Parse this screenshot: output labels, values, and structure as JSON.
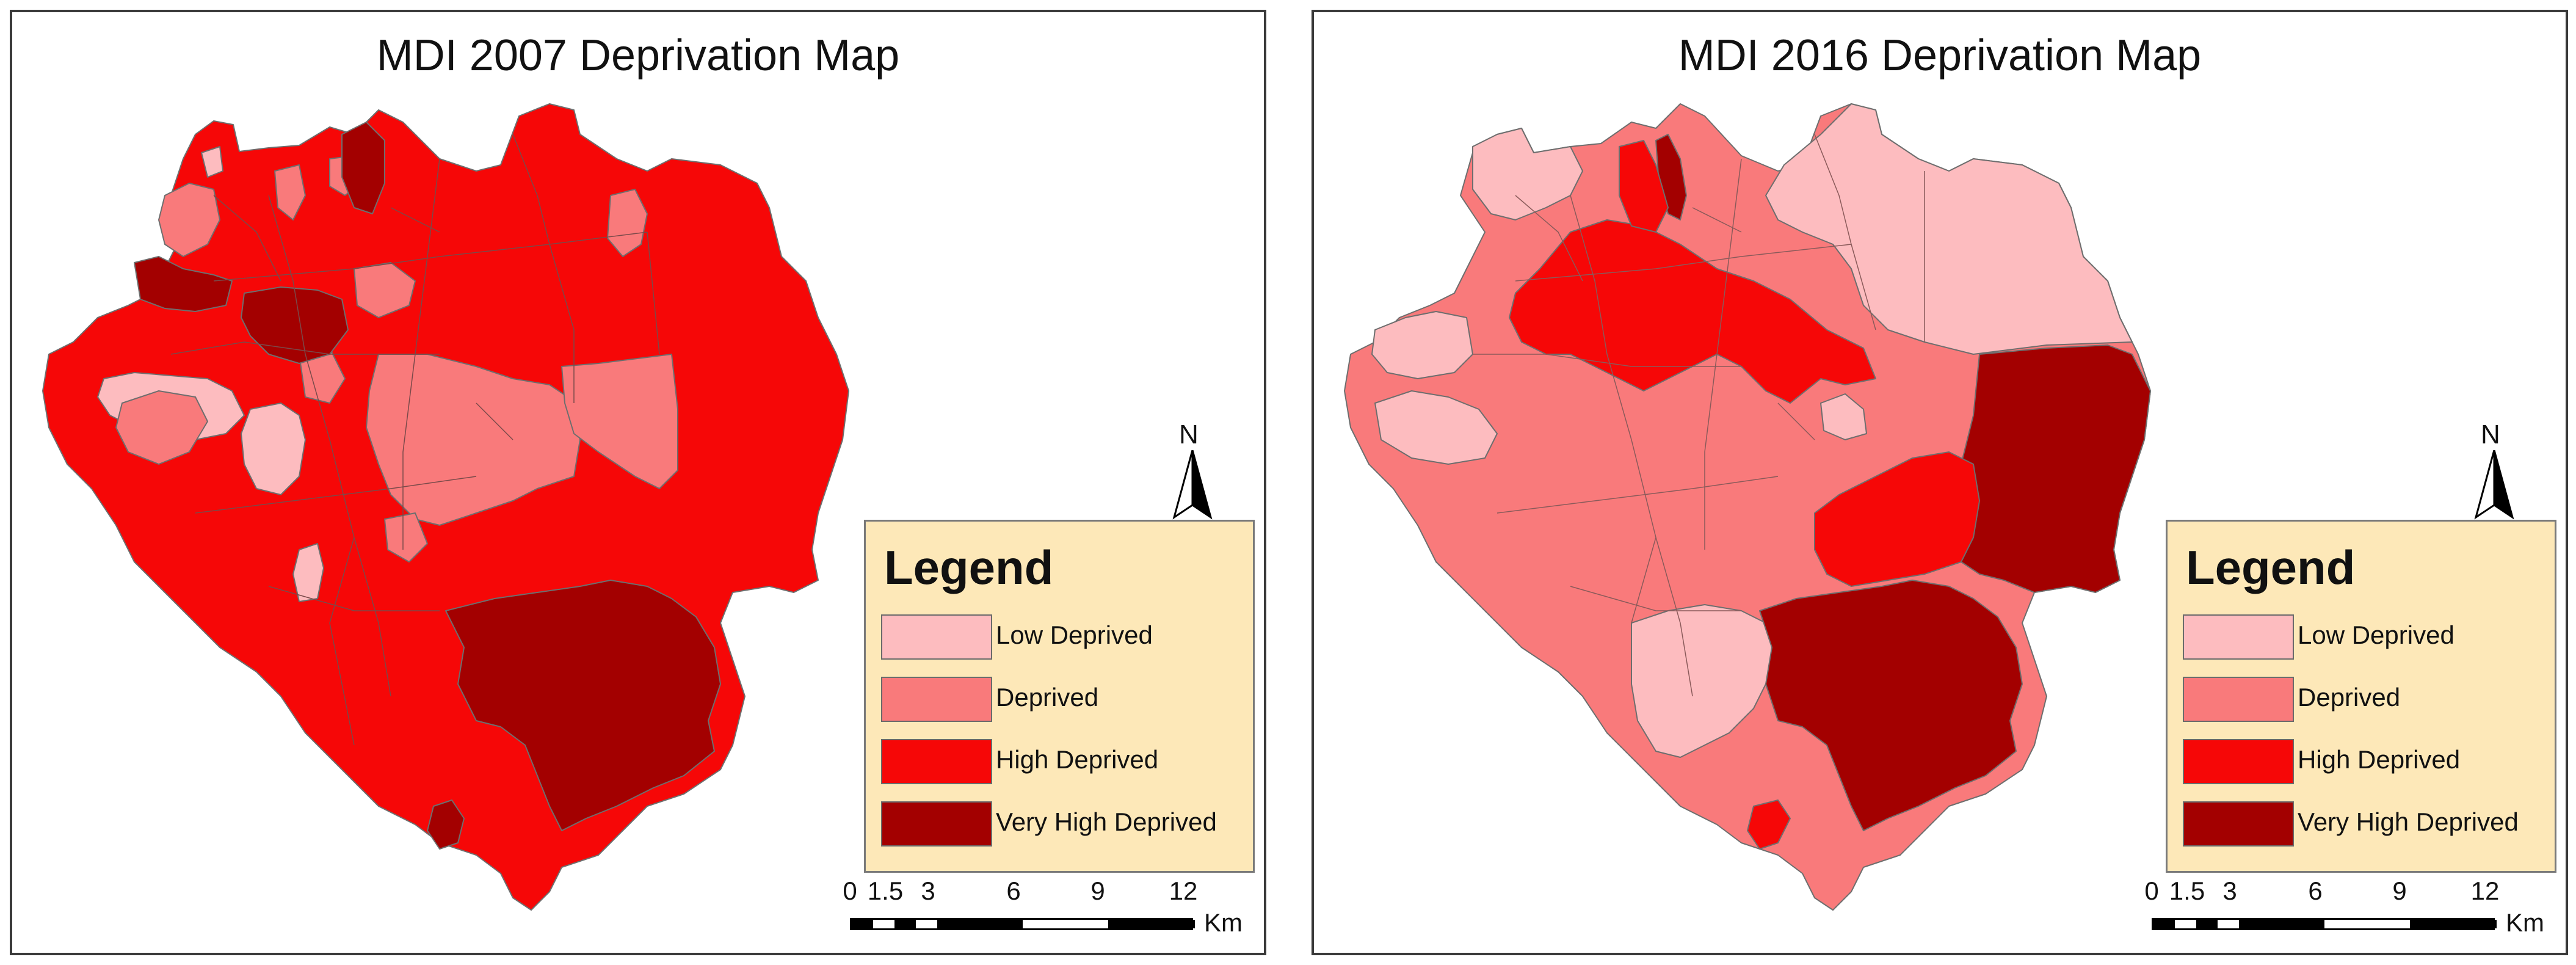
{
  "colors": {
    "low": "#fdbcbf",
    "deprived": "#f97a7b",
    "high": "#f60707",
    "very_high": "#a30000",
    "legend_bg": "#fde8b8"
  },
  "legend_items": [
    {
      "label": "Low Deprived",
      "color": "#fdbcbf"
    },
    {
      "label": "Deprived",
      "color": "#f97a7b"
    },
    {
      "label": "High Deprived",
      "color": "#f60707"
    },
    {
      "label": "Very High Deprived",
      "color": "#a30000"
    }
  ],
  "maps": [
    {
      "title": "MDI 2007 Deprivation Map",
      "legend_title": "Legend",
      "north_label": "N",
      "scale_ticks": [
        "0",
        "1.5",
        "3",
        "6",
        "9",
        "12"
      ],
      "scale_unit": "Km",
      "dominant_class": "high"
    },
    {
      "title": "MDI 2016 Deprivation Map",
      "legend_title": "Legend",
      "north_label": "N",
      "scale_ticks": [
        "0",
        "1.5",
        "3",
        "6",
        "9",
        "12"
      ],
      "scale_unit": "Km",
      "dominant_class": "deprived"
    }
  ]
}
